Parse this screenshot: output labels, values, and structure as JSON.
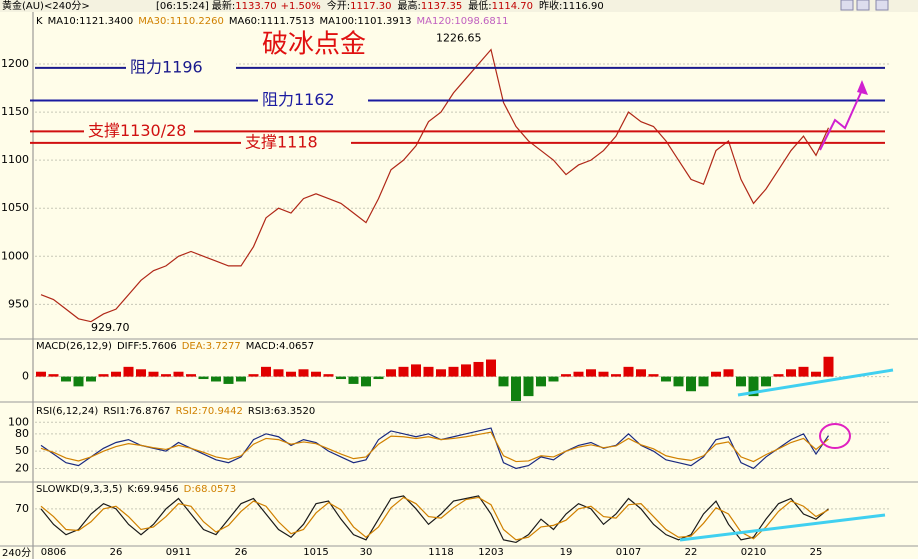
{
  "header": {
    "symbol": "黄金(AU)<240分>",
    "fields": [
      {
        "label": "[06:15:24] 最新:",
        "value": "1133.70",
        "color": "#c00000"
      },
      {
        "label": "",
        "value": "+1.50%",
        "color": "#c00000"
      },
      {
        "label": "今开:",
        "value": "1117.30",
        "color": "#c00000"
      },
      {
        "label": "最高:",
        "value": "1137.35",
        "color": "#c00000"
      },
      {
        "label": "最低:",
        "value": "1114.70",
        "color": "#c00000"
      },
      {
        "label": "昨收:",
        "value": "1116.90",
        "color": "#000000"
      }
    ]
  },
  "period_label": "240分",
  "chart_data": [
    {
      "type": "line",
      "title": "破冰点金",
      "legend": [
        {
          "text": "K",
          "color": "#000000"
        },
        {
          "text": "MA10:1121.3400",
          "color": "#000000"
        },
        {
          "text": "MA30:1110.2260",
          "color": "#d08000"
        },
        {
          "text": "MA60:1111.7513",
          "color": "#000000"
        },
        {
          "text": "MA100:1101.3913",
          "color": "#000000"
        },
        {
          "text": "MA120:1098.6811",
          "color": "#c060c0"
        }
      ],
      "categories": [
        null,
        "0806",
        null,
        null,
        null,
        null,
        "26",
        null,
        null,
        null,
        null,
        "0911",
        null,
        null,
        null,
        null,
        "26",
        null,
        null,
        null,
        null,
        null,
        "1015",
        null,
        null,
        null,
        "30",
        null,
        null,
        null,
        null,
        null,
        "1118",
        null,
        null,
        null,
        "1203",
        null,
        null,
        null,
        null,
        null,
        "19",
        null,
        null,
        null,
        null,
        "0107",
        null,
        null,
        null,
        null,
        "22",
        null,
        null,
        null,
        null,
        "0210",
        null,
        null,
        null,
        null,
        "25",
        null
      ],
      "series": [
        {
          "name": "K",
          "color": "#b02818",
          "values": [
            960,
            955,
            945,
            935,
            932,
            940,
            945,
            960,
            975,
            985,
            990,
            1000,
            1005,
            1000,
            995,
            990,
            990,
            1010,
            1040,
            1050,
            1045,
            1060,
            1065,
            1060,
            1055,
            1045,
            1035,
            1060,
            1090,
            1100,
            1115,
            1140,
            1150,
            1170,
            1185,
            1200,
            1215,
            1160,
            1135,
            1120,
            1110,
            1100,
            1085,
            1095,
            1100,
            1110,
            1125,
            1150,
            1140,
            1135,
            1120,
            1100,
            1080,
            1075,
            1110,
            1120,
            1080,
            1055,
            1070,
            1090,
            1110,
            1125,
            1105,
            1133.7
          ]
        }
      ],
      "levels": [
        {
          "value": 1196,
          "label": "阻力1196",
          "color": "#1a1a8c"
        },
        {
          "value": 1162,
          "label": "阻力1162",
          "color": "#1a1aa0"
        },
        {
          "value": 1130,
          "label": "支撑1130/28",
          "color": "#d01010"
        },
        {
          "value": 1118,
          "label": "支撑1118",
          "color": "#d01010"
        }
      ],
      "high": 1226.65,
      "low": {
        "value": 929.7,
        "label": "929.70"
      },
      "ylim": [
        915,
        1251
      ],
      "yticks": [
        950,
        1000,
        1050,
        1100,
        1150,
        1200
      ],
      "grid": true
    },
    {
      "type": "bar",
      "legend": [
        {
          "text": "MACD(26,12,9)",
          "color": "#000000"
        },
        {
          "text": "DIFF:5.7606",
          "color": "#000000"
        },
        {
          "text": "DEA:3.7277",
          "color": "#d08000"
        },
        {
          "text": "MACD:4.0657",
          "color": "#000000"
        }
      ],
      "values": [
        1,
        0.5,
        -1,
        -2,
        -1,
        0.5,
        1,
        2,
        1.5,
        1,
        0.5,
        1,
        0.5,
        -0.5,
        -1,
        -1.5,
        -1,
        0.5,
        2,
        1.5,
        1,
        1.5,
        1,
        0.5,
        -0.5,
        -1.5,
        -2,
        -0.5,
        1.5,
        2,
        2.5,
        2,
        1.5,
        2,
        2.5,
        3,
        3.5,
        -2,
        -5,
        -4,
        -2,
        -1,
        0.5,
        1,
        1.5,
        1,
        0.5,
        2,
        1.5,
        0.5,
        -1,
        -2,
        -3,
        -2,
        1,
        1.5,
        -2,
        -4,
        -2,
        0.5,
        1.5,
        2,
        1,
        4.0657
      ],
      "colors": {
        "up": "#e00000",
        "down": "#108010"
      },
      "ylim": [
        -5,
        7.5
      ],
      "yticks": [
        0
      ],
      "grid": true
    },
    {
      "type": "line",
      "legend": [
        {
          "text": "RSI(6,12,24)",
          "color": "#000000"
        },
        {
          "text": "RSI1:76.8767",
          "color": "#000000"
        },
        {
          "text": "RSI2:70.9442",
          "color": "#d08000"
        },
        {
          "text": "RSI3:63.3520",
          "color": "#000000"
        }
      ],
      "series": [
        {
          "name": "RSI1",
          "color": "#1a2a80",
          "values": [
            60,
            45,
            30,
            25,
            40,
            55,
            65,
            70,
            60,
            55,
            50,
            65,
            55,
            45,
            35,
            30,
            40,
            70,
            80,
            75,
            60,
            70,
            65,
            50,
            40,
            30,
            35,
            70,
            85,
            80,
            75,
            80,
            70,
            75,
            80,
            85,
            90,
            30,
            20,
            25,
            40,
            35,
            50,
            60,
            65,
            55,
            60,
            80,
            60,
            50,
            35,
            30,
            25,
            40,
            70,
            75,
            30,
            20,
            40,
            55,
            70,
            80,
            45,
            76.8767
          ]
        },
        {
          "name": "RSI2",
          "color": "#d08000",
          "values": [
            55,
            48,
            38,
            33,
            40,
            50,
            58,
            63,
            60,
            56,
            53,
            60,
            55,
            48,
            40,
            36,
            42,
            62,
            72,
            70,
            62,
            66,
            63,
            54,
            45,
            37,
            40,
            62,
            76,
            75,
            72,
            75,
            70,
            72,
            75,
            79,
            83,
            42,
            32,
            33,
            42,
            40,
            50,
            57,
            61,
            56,
            59,
            72,
            61,
            54,
            42,
            37,
            34,
            42,
            62,
            66,
            40,
            32,
            44,
            54,
            65,
            72,
            53,
            70.9442
          ]
        }
      ],
      "ylim": [
        0,
        130
      ],
      "yticks": [
        20,
        50,
        80,
        100
      ],
      "grid": true
    },
    {
      "type": "line",
      "legend": [
        {
          "text": "SLOWKD(9,3,3,5)",
          "color": "#000000"
        },
        {
          "text": "K:69.9456",
          "color": "#000000"
        },
        {
          "text": "D:68.0573",
          "color": "#d08000"
        }
      ],
      "series": [
        {
          "name": "K",
          "color": "#1a1a1a",
          "values": [
            70,
            40,
            20,
            30,
            60,
            80,
            70,
            40,
            20,
            40,
            70,
            90,
            60,
            30,
            20,
            50,
            80,
            90,
            60,
            30,
            15,
            40,
            80,
            85,
            50,
            20,
            10,
            50,
            90,
            95,
            70,
            40,
            60,
            85,
            90,
            95,
            60,
            10,
            5,
            20,
            50,
            30,
            60,
            80,
            70,
            40,
            60,
            90,
            70,
            40,
            20,
            10,
            20,
            60,
            85,
            40,
            10,
            15,
            50,
            80,
            90,
            60,
            50,
            69.9456
          ]
        },
        {
          "name": "D",
          "color": "#d08000",
          "values": [
            75,
            55,
            30,
            28,
            45,
            70,
            75,
            55,
            30,
            35,
            55,
            80,
            75,
            45,
            25,
            38,
            65,
            85,
            75,
            45,
            22,
            30,
            62,
            82,
            68,
            35,
            15,
            35,
            72,
            92,
            80,
            55,
            52,
            72,
            88,
            92,
            78,
            30,
            10,
            15,
            35,
            38,
            48,
            70,
            75,
            55,
            52,
            78,
            80,
            55,
            30,
            15,
            17,
            42,
            72,
            60,
            25,
            12,
            35,
            65,
            85,
            75,
            55,
            68.0573
          ]
        }
      ],
      "ylim": [
        0,
        120
      ],
      "yticks": [
        70
      ],
      "grid": true
    }
  ]
}
